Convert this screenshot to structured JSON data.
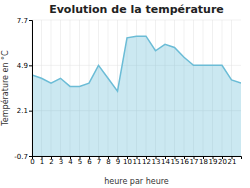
{
  "chart_data": {
    "type": "area",
    "title": "Evolution de la température",
    "x_label": "heure par heure",
    "y_label": "Température en °C",
    "x": [
      0,
      1,
      2,
      3,
      4,
      5,
      6,
      7,
      8,
      9,
      10,
      11,
      12,
      13,
      14,
      15,
      16,
      17,
      18,
      19,
      20,
      21,
      22
    ],
    "values": [
      4.3,
      4.1,
      3.8,
      4.1,
      3.6,
      3.6,
      3.8,
      4.9,
      4.1,
      3.3,
      6.6,
      6.7,
      6.7,
      5.8,
      6.2,
      6.0,
      5.4,
      4.9,
      4.9,
      4.9,
      4.9,
      4.0,
      3.8
    ],
    "color": "#6bbcd6",
    "xlim": [
      0,
      22
    ],
    "xticks": [
      0,
      1,
      2,
      3,
      4,
      5,
      6,
      7,
      8,
      9,
      10,
      11,
      12,
      13,
      14,
      15,
      16,
      17,
      18,
      19,
      20,
      21
    ],
    "ylim": [
      -0.7,
      7.7
    ],
    "yticks": [
      -0.7,
      2.1,
      4.9,
      7.7
    ],
    "grid": true
  }
}
